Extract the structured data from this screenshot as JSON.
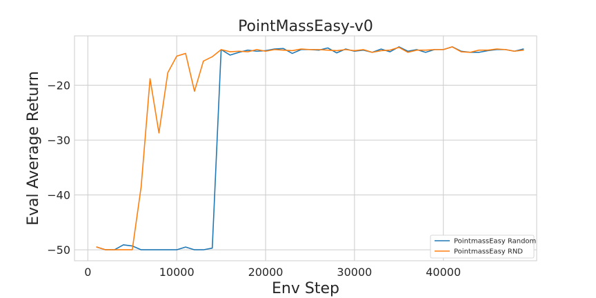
{
  "chart_data": {
    "type": "line",
    "title": "PointMassEasy-v0",
    "xlabel": "Env Step",
    "ylabel": "Eval Average Return",
    "xlim": [
      -1500,
      50500
    ],
    "ylim": [
      -52,
      -11
    ],
    "xticks": [
      0,
      10000,
      20000,
      30000,
      40000
    ],
    "xtick_labels": [
      "0",
      "10000",
      "20000",
      "30000",
      "40000"
    ],
    "yticks": [
      -50,
      -40,
      -30,
      -20
    ],
    "ytick_labels": [
      "−50",
      "−40",
      "−30",
      "−20"
    ],
    "grid": true,
    "legend_position": "bottom-right",
    "series": [
      {
        "name": "PointmassEasy Random",
        "color": "#1f77b4",
        "x": [
          1000,
          2000,
          3000,
          4000,
          5000,
          6000,
          7000,
          8000,
          9000,
          10000,
          11000,
          12000,
          13000,
          14000,
          15000,
          16000,
          17000,
          18000,
          19000,
          20000,
          21000,
          22000,
          23000,
          24000,
          25000,
          26000,
          27000,
          28000,
          29000,
          30000,
          31000,
          32000,
          33000,
          34000,
          35000,
          36000,
          37000,
          38000,
          39000,
          40000,
          41000,
          42000,
          43000,
          44000,
          45000,
          46000,
          47000,
          48000,
          49000
        ],
        "y": [
          -49.5,
          -50,
          -50,
          -49.1,
          -49.3,
          -50,
          -50,
          -50,
          -50,
          -50,
          -49.5,
          -50,
          -50,
          -49.7,
          -13.5,
          -14.5,
          -14.0,
          -13.6,
          -13.8,
          -13.7,
          -13.4,
          -13.3,
          -14.2,
          -13.5,
          -13.5,
          -13.6,
          -13.2,
          -14.1,
          -13.4,
          -13.8,
          -13.6,
          -14.0,
          -13.4,
          -13.9,
          -13.0,
          -13.8,
          -13.5,
          -14.0,
          -13.5,
          -13.5,
          -13.0,
          -13.8,
          -14.0,
          -14.0,
          -13.7,
          -13.5,
          -13.5,
          -13.8,
          -13.4
        ]
      },
      {
        "name": "PointmassEasy RND",
        "color": "#ff7f0e",
        "x": [
          1000,
          2000,
          3000,
          4000,
          5000,
          6000,
          7000,
          8000,
          9000,
          10000,
          11000,
          12000,
          13000,
          14000,
          15000,
          16000,
          17000,
          18000,
          19000,
          20000,
          21000,
          22000,
          23000,
          24000,
          25000,
          26000,
          27000,
          28000,
          29000,
          30000,
          31000,
          32000,
          33000,
          34000,
          35000,
          36000,
          37000,
          38000,
          39000,
          40000,
          41000,
          42000,
          43000,
          44000,
          45000,
          46000,
          47000,
          48000,
          49000
        ],
        "y": [
          -49.5,
          -50,
          -50,
          -50,
          -50,
          -38.5,
          -18.8,
          -28.7,
          -17.7,
          -14.7,
          -14.2,
          -21.1,
          -15.6,
          -14.8,
          -13.5,
          -13.9,
          -13.8,
          -13.9,
          -13.5,
          -13.8,
          -13.5,
          -13.6,
          -13.7,
          -13.4,
          -13.5,
          -13.5,
          -13.6,
          -13.7,
          -13.5,
          -13.7,
          -13.5,
          -14.0,
          -13.7,
          -13.6,
          -13.1,
          -14.0,
          -13.6,
          -13.6,
          -13.5,
          -13.5,
          -13.0,
          -13.9,
          -14.0,
          -13.6,
          -13.6,
          -13.4,
          -13.5,
          -13.8,
          -13.6
        ]
      }
    ]
  }
}
